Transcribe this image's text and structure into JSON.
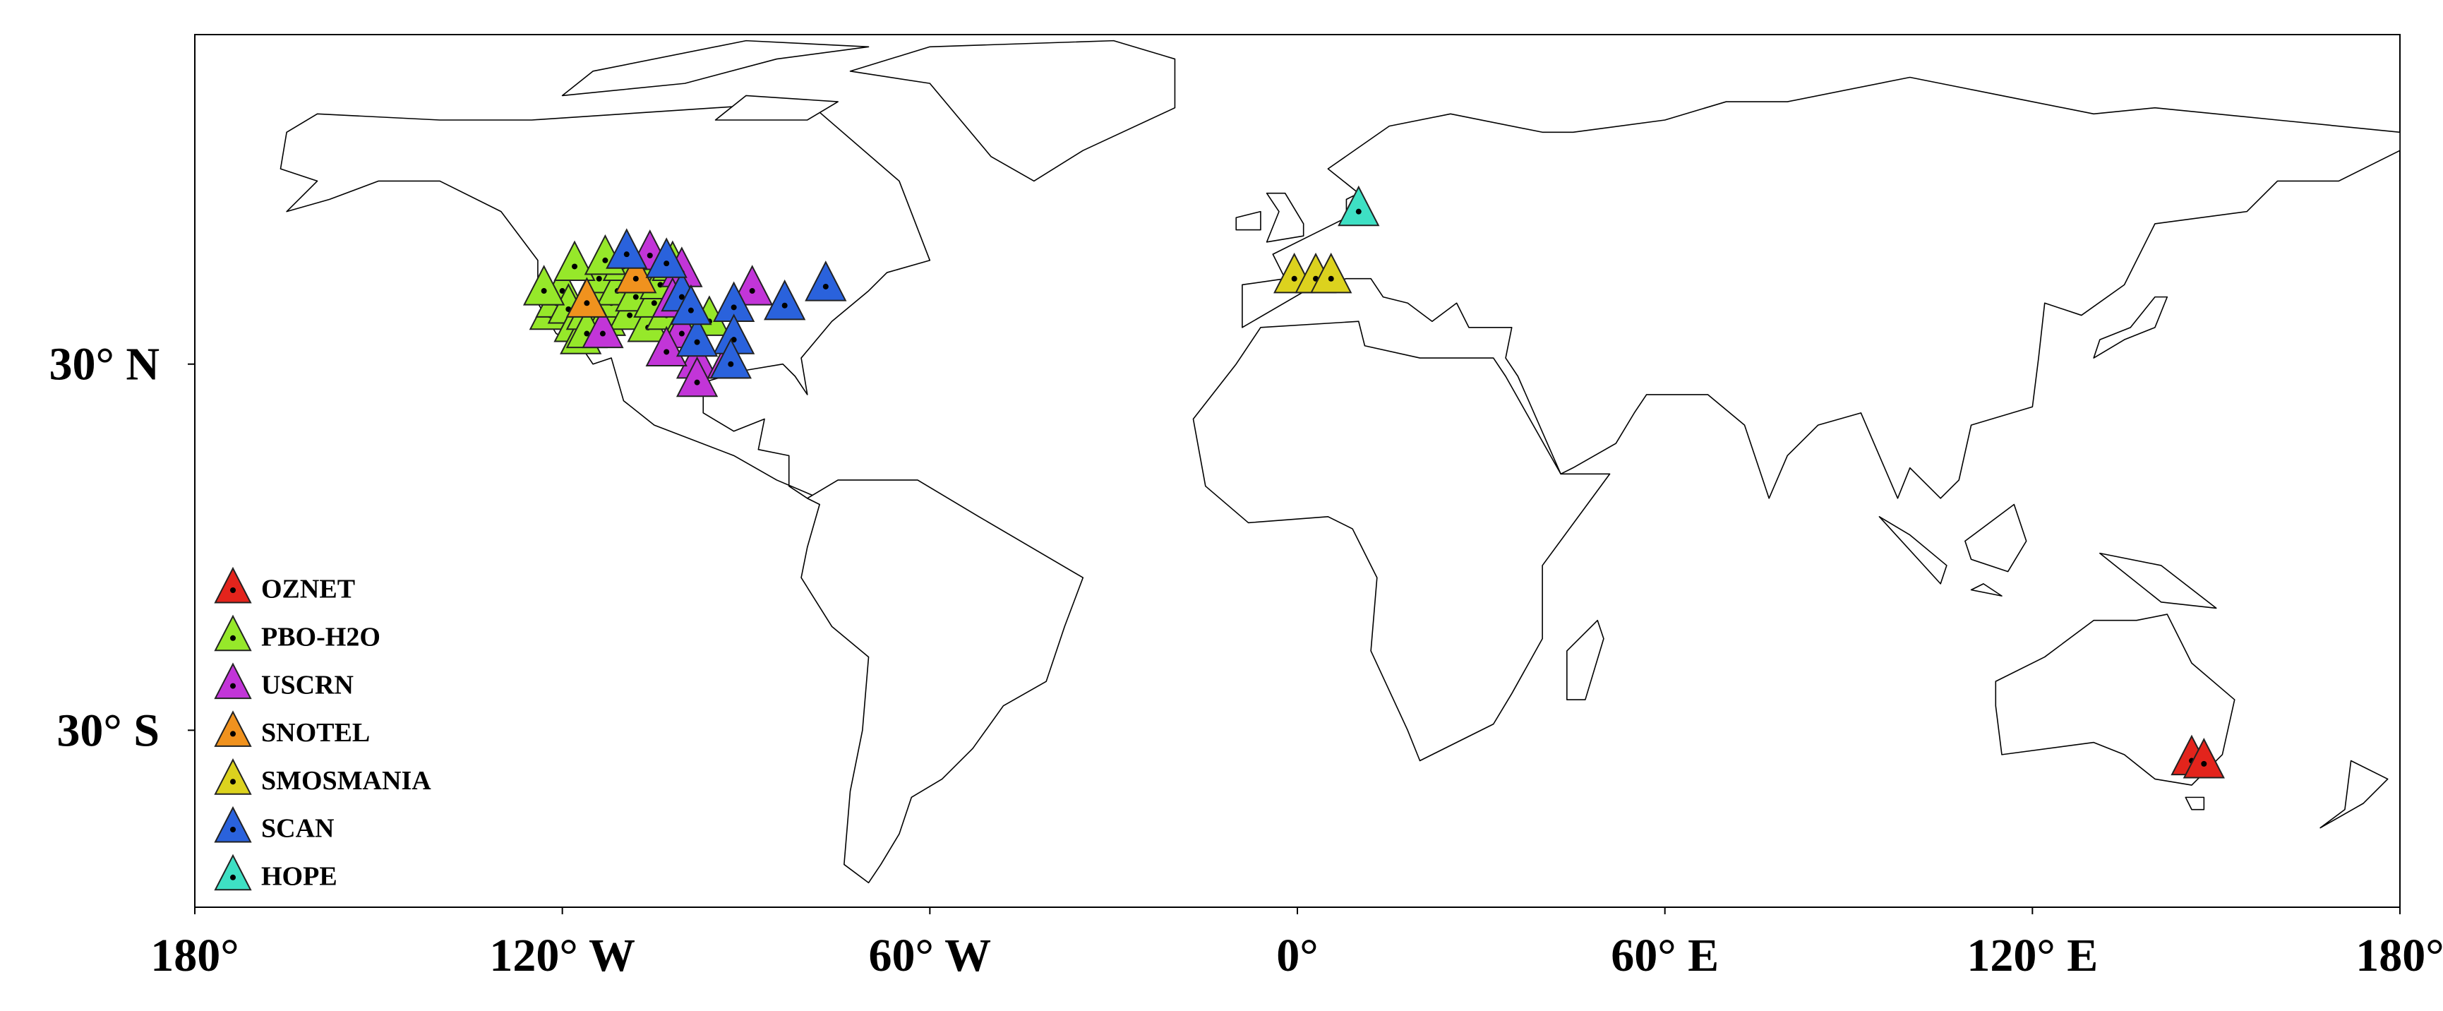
{
  "chart_data": {
    "type": "map",
    "xlim": [
      -180,
      180
    ],
    "ylim": [
      -59,
      84
    ],
    "xticks": [
      {
        "value": -180,
        "label": "180°"
      },
      {
        "value": -120,
        "label": "120° W"
      },
      {
        "value": -60,
        "label": "60° W"
      },
      {
        "value": 0,
        "label": "0°"
      },
      {
        "value": 60,
        "label": "60° E"
      },
      {
        "value": 120,
        "label": "120° E"
      },
      {
        "value": 180,
        "label": "180°"
      }
    ],
    "yticks": [
      {
        "value": 30,
        "label": "30° N"
      },
      {
        "value": -30,
        "label": "30° S"
      }
    ],
    "series": [
      {
        "name": "OZNET",
        "color": "#e3241c",
        "points": [
          [
            146,
            -35
          ],
          [
            148,
            -35.5
          ]
        ]
      },
      {
        "name": "PBO-H2O",
        "color": "#96e82a",
        "points": [
          [
            -122,
            38
          ],
          [
            -121,
            40
          ],
          [
            -120,
            42
          ],
          [
            -119,
            39
          ],
          [
            -118,
            36
          ],
          [
            -117,
            34
          ],
          [
            -116,
            38
          ],
          [
            -115,
            41
          ],
          [
            -114,
            44
          ],
          [
            -113,
            37
          ],
          [
            -112,
            40
          ],
          [
            -111,
            42
          ],
          [
            -110,
            46
          ],
          [
            -109,
            38
          ],
          [
            -108,
            41
          ],
          [
            -107,
            44
          ],
          [
            -106,
            36
          ],
          [
            -105,
            40
          ],
          [
            -104,
            43
          ],
          [
            -103,
            38
          ],
          [
            -102,
            46
          ],
          [
            -100,
            37
          ],
          [
            -123,
            42
          ],
          [
            -118,
            46
          ],
          [
            -116,
            35
          ],
          [
            -113,
            47
          ],
          [
            -96,
            37
          ]
        ]
      },
      {
        "name": "USCRN",
        "color": "#c235d8",
        "points": [
          [
            -89,
            42
          ],
          [
            -105.7,
            47.8
          ],
          [
            -100.5,
            45
          ],
          [
            -100.5,
            35
          ],
          [
            -98,
            30
          ],
          [
            -98,
            27
          ],
          [
            -93,
            30
          ],
          [
            -103,
            32
          ],
          [
            -113.4,
            35
          ],
          [
            -102,
            40
          ]
        ]
      },
      {
        "name": "SNOTEL",
        "color": "#f0921e",
        "points": [
          [
            -116,
            40
          ],
          [
            -108,
            44
          ]
        ]
      },
      {
        "name": "SMOSMANIA",
        "color": "#dcd21e",
        "points": [
          [
            -0.5,
            44
          ],
          [
            3,
            44
          ],
          [
            5.5,
            44
          ]
        ]
      },
      {
        "name": "SCAN",
        "color": "#2a62dc",
        "points": [
          [
            -77,
            42.7
          ],
          [
            -83.7,
            39.6
          ],
          [
            -92,
            39.3
          ],
          [
            -92,
            34
          ],
          [
            -92.5,
            30
          ],
          [
            -98,
            33.6
          ],
          [
            -100.5,
            41
          ],
          [
            -109.5,
            48
          ],
          [
            -103,
            46.5
          ],
          [
            -99,
            38.8
          ]
        ]
      },
      {
        "name": "HOPE",
        "color": "#3ee0c4",
        "points": [
          [
            10,
            55
          ]
        ]
      }
    ]
  }
}
